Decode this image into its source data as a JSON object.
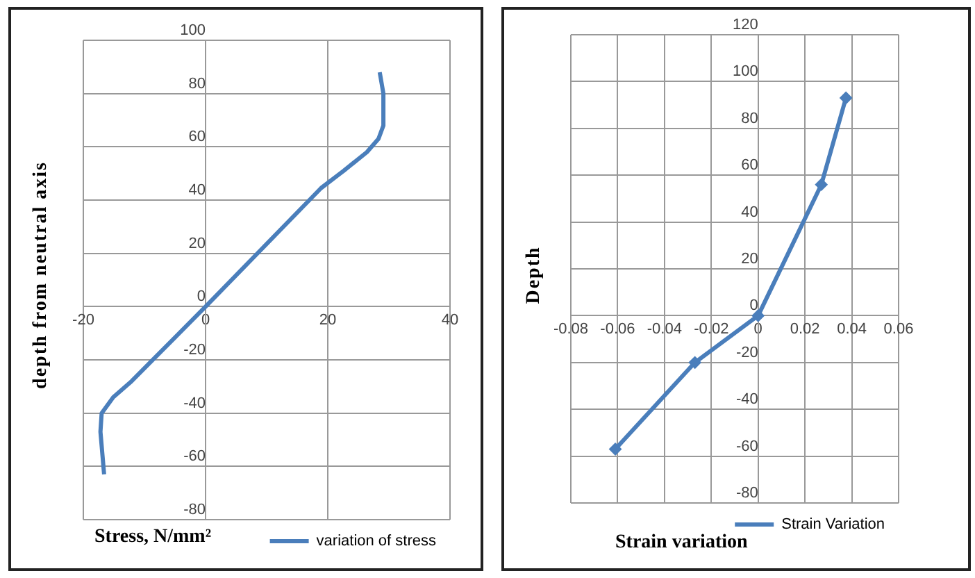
{
  "chart_data": [
    {
      "type": "line",
      "xlabel": "Stress, N/mm²",
      "ylabel": "depth from neutral axis",
      "xlim": [
        -20,
        40
      ],
      "xticks": [
        -20,
        0,
        20,
        40
      ],
      "ylim": [
        -80,
        100
      ],
      "yticks": [
        -80,
        -60,
        -40,
        -20,
        0,
        20,
        40,
        60,
        80,
        100
      ],
      "grid": true,
      "legend": "bottom right",
      "marker": "none",
      "line_style": "solid",
      "series": [
        {
          "name": "variation of stress",
          "color": "#4a7ebb",
          "x": [
            28.5,
            29.1,
            29.1,
            28.3,
            26.4,
            22.6,
            18.9,
            0,
            -12.1,
            -15.1,
            -17,
            -17.2,
            -16.6
          ],
          "values": [
            88,
            80,
            68,
            63,
            58,
            51,
            44.5,
            0,
            -28,
            -34,
            -40,
            -47,
            -63
          ]
        }
      ]
    },
    {
      "type": "line",
      "xlabel": "Strain variation",
      "ylabel": "Depth",
      "xlim": [
        -0.08,
        0.06
      ],
      "xticks": [
        -0.08,
        -0.06,
        -0.04,
        -0.02,
        0,
        0.02,
        0.04,
        0.06
      ],
      "ylim": [
        -80,
        120
      ],
      "yticks": [
        -80,
        -60,
        -40,
        -20,
        0,
        20,
        40,
        60,
        80,
        100,
        120
      ],
      "grid": true,
      "legend": "bottom right",
      "marker": "diamond",
      "line_style": "solid",
      "series": [
        {
          "name": "Strain Variation",
          "color": "#4a7ebb",
          "x": [
            -0.061,
            -0.027,
            0,
            0.027,
            0.0375
          ],
          "values": [
            -57,
            -20,
            0,
            56,
            93
          ]
        }
      ]
    }
  ]
}
